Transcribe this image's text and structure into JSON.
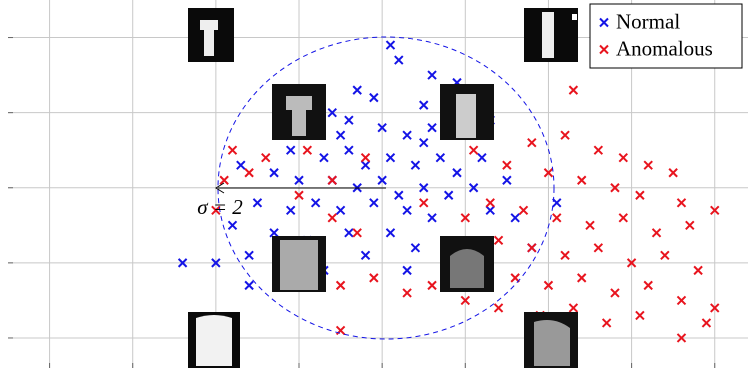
{
  "chart_data": {
    "type": "scatter",
    "annotation": "σ = 2",
    "xlim": [
      -4.5,
      4.4
    ],
    "ylim": [
      -2.4,
      2.5
    ],
    "xticks": [
      -4,
      -3,
      -2,
      -1,
      0,
      1,
      2,
      3,
      4
    ],
    "yticks": [
      -2,
      -1,
      0,
      1,
      2
    ],
    "grid": true,
    "legend": "upper right",
    "series": [
      {
        "name": "Normal",
        "color": "#1414e6",
        "x": [
          0.1,
          0.2,
          0.6,
          0.9,
          0.8,
          1.1,
          0.5,
          -0.1,
          -0.3,
          -0.6,
          -1.0,
          -0.8,
          -0.4,
          0.0,
          0.3,
          0.6,
          1.0,
          1.3,
          -1.1,
          -0.7,
          -0.4,
          -0.2,
          0.1,
          0.4,
          0.7,
          0.9,
          1.2,
          -1.3,
          -1.0,
          -0.6,
          -0.3,
          0.0,
          0.2,
          0.5,
          0.8,
          1.1,
          1.5,
          -1.5,
          -1.1,
          -0.8,
          -0.5,
          -0.1,
          0.3,
          0.6,
          1.3,
          1.6,
          -1.8,
          -1.3,
          -0.9,
          -0.4,
          0.1,
          0.4,
          -1.6,
          -1.1,
          -0.7,
          -2.0,
          -1.6,
          0.3,
          1.8,
          2.1,
          -0.2,
          0.5,
          -0.5,
          -1.7,
          0.9,
          -2.4
        ],
        "values": [
          1.9,
          1.7,
          1.5,
          1.4,
          1.2,
          1.1,
          1.1,
          1.2,
          1.3,
          1.0,
          1.1,
          0.8,
          0.9,
          0.8,
          0.7,
          0.8,
          0.7,
          0.9,
          0.5,
          0.4,
          0.5,
          0.3,
          0.4,
          0.3,
          0.4,
          0.2,
          0.4,
          0.2,
          0.1,
          0.1,
          0.0,
          0.1,
          -0.1,
          0.0,
          -0.1,
          0.0,
          0.1,
          -0.2,
          -0.3,
          -0.2,
          -0.3,
          -0.2,
          -0.3,
          -0.4,
          -0.3,
          -0.4,
          -0.5,
          -0.6,
          -0.7,
          -0.6,
          -0.6,
          -0.8,
          -0.9,
          -1.0,
          -1.1,
          -1.0,
          -1.3,
          -1.1,
          -0.8,
          -0.2,
          -0.9,
          0.6,
          0.7,
          0.3,
          1.0,
          -1.0
        ]
      },
      {
        "name": "Anomalous",
        "color": "#e8141e",
        "x": [
          2.3,
          1.8,
          2.2,
          2.6,
          2.9,
          3.2,
          3.5,
          1.5,
          2.0,
          2.4,
          2.8,
          3.1,
          3.6,
          4.0,
          1.3,
          1.7,
          2.1,
          2.5,
          2.9,
          3.3,
          3.7,
          1.4,
          1.8,
          2.2,
          2.6,
          3.0,
          3.4,
          3.8,
          1.2,
          1.6,
          2.0,
          2.4,
          2.8,
          3.2,
          3.6,
          1.0,
          1.4,
          1.9,
          2.3,
          2.7,
          3.1,
          3.9,
          3.6,
          0.6,
          0.3,
          -0.1,
          -0.5,
          -0.6,
          -1.0,
          -1.4,
          -1.9,
          -1.8,
          -0.9,
          -0.2,
          -0.6,
          0.5,
          1.0,
          -0.3,
          -2.0,
          -1.2,
          -0.5,
          1.1,
          0.8,
          -1.6,
          4.0,
          2.0
        ],
        "values": [
          1.3,
          0.6,
          0.7,
          0.5,
          0.4,
          0.3,
          0.2,
          0.3,
          0.2,
          0.1,
          0.0,
          -0.1,
          -0.2,
          -0.3,
          -0.2,
          -0.3,
          -0.4,
          -0.5,
          -0.4,
          -0.6,
          -0.5,
          -0.7,
          -0.8,
          -0.9,
          -0.8,
          -1.0,
          -0.9,
          -1.1,
          -1.1,
          -1.2,
          -1.3,
          -1.2,
          -1.4,
          -1.3,
          -1.5,
          -1.5,
          -1.6,
          -1.7,
          -1.6,
          -1.8,
          -1.7,
          -1.8,
          -2.0,
          -1.3,
          -1.4,
          -1.2,
          -1.3,
          -0.4,
          -0.1,
          0.4,
          0.1,
          0.5,
          0.5,
          0.4,
          0.1,
          -0.2,
          -0.4,
          -0.6,
          -0.3,
          -1.3,
          -1.9,
          0.5,
          -0.9,
          0.2,
          -1.6,
          -1.9
        ]
      }
    ]
  }
}
